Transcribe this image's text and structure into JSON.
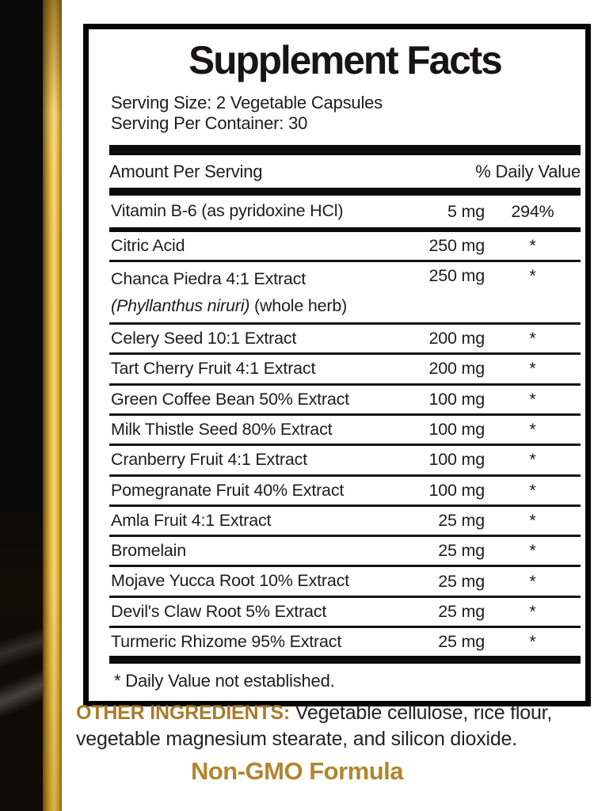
{
  "colors": {
    "gold_accent": "#a87c2b",
    "gold_heading": "#b1862e",
    "ink": "#1e1c1d",
    "bar": "#0d0c0c",
    "stripe_gold_bright": "#f2c94f"
  },
  "label": {
    "title": "Supplement Facts",
    "serving_size": "Serving Size: 2 Vegetable Capsules",
    "servings_per_container": "Serving Per Container: 30",
    "column_headers": {
      "amount": "Amount Per Serving",
      "daily_value": "% Daily Value"
    },
    "primary_row": {
      "name": "Vitamin B-6 (as pyridoxine HCl)",
      "amount": "5 mg",
      "dv": "294%"
    },
    "rows": [
      {
        "name": "Citric Acid",
        "amount": "250 mg",
        "dv": "*"
      },
      {
        "name": "Chanca Piedra 4:1 Extract",
        "sub_italic": "(Phyllanthus niruri)",
        "sub_rest": " (whole herb)",
        "amount": "250 mg",
        "dv": "*"
      },
      {
        "name": "Celery Seed 10:1 Extract",
        "amount": "200 mg",
        "dv": "*"
      },
      {
        "name": "Tart Cherry Fruit 4:1 Extract",
        "amount": "200 mg",
        "dv": "*"
      },
      {
        "name": "Green Coffee Bean 50% Extract",
        "amount": "100 mg",
        "dv": "*"
      },
      {
        "name": "Milk Thistle Seed 80% Extract",
        "amount": "100 mg",
        "dv": "*"
      },
      {
        "name": "Cranberry Fruit 4:1 Extract",
        "amount": "100 mg",
        "dv": "*"
      },
      {
        "name": "Pomegranate Fruit 40% Extract",
        "amount": "100 mg",
        "dv": "*"
      },
      {
        "name": "Amla Fruit 4:1 Extract",
        "amount": "25 mg",
        "dv": "*"
      },
      {
        "name": "Bromelain",
        "amount": "25 mg",
        "dv": "*"
      },
      {
        "name": "Mojave Yucca Root 10% Extract",
        "amount": "25 mg",
        "dv": "*"
      },
      {
        "name": "Devil's Claw Root 5% Extract",
        "amount": "25 mg",
        "dv": "*"
      },
      {
        "name": "Turmeric Rhizome 95% Extract",
        "amount": "25 mg",
        "dv": "*"
      }
    ],
    "footnote": "* Daily Value not established."
  },
  "other_ingredients": {
    "heading": "OTHER INGREDIENTS:",
    "line1_rest": " Vegetable cellulose, rice flour,",
    "line2": "vegetable magnesium stearate, and silicon dioxide."
  },
  "non_gmo": "Non-GMO Formula"
}
